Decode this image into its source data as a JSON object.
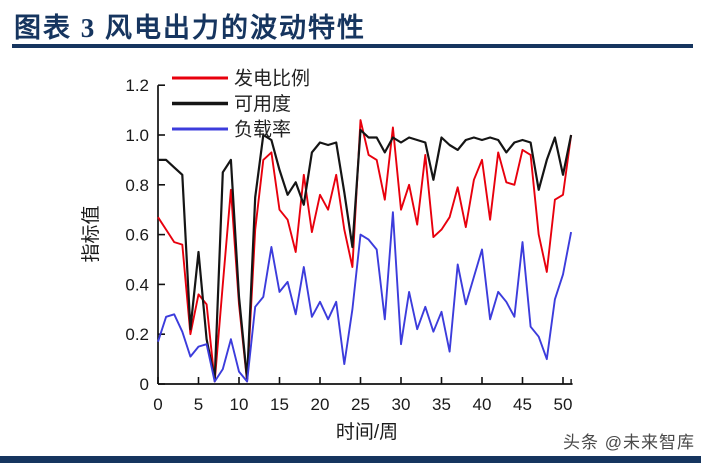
{
  "header": {
    "title": "图表 3  风电出力的波动特性"
  },
  "watermark": "头条 @未来智库",
  "colors": {
    "title": "#16355f",
    "rule": "#16355f",
    "bottom_bar": "#16355f",
    "axis": "#111111",
    "tick_text": "#1a1a1a",
    "watermark_text": "#4a4a4a"
  },
  "chart_data": {
    "type": "line",
    "title": "",
    "xlabel": "时间/周",
    "ylabel": "指标值",
    "xlim": [
      0,
      51
    ],
    "ylim": [
      0,
      1.2
    ],
    "grid": false,
    "legend_position": "top-left-inside",
    "xticks": [
      0,
      5,
      10,
      15,
      20,
      25,
      30,
      35,
      40,
      45,
      50
    ],
    "ytick_labels": [
      "0",
      "0.2",
      "0.4",
      "0.6",
      "0.8",
      "1.0",
      "1.2"
    ],
    "ytick_values": [
      0,
      0.2,
      0.4,
      0.6,
      0.8,
      1.0,
      1.2
    ],
    "x": [
      0,
      1,
      2,
      3,
      4,
      5,
      6,
      7,
      8,
      9,
      10,
      11,
      12,
      13,
      14,
      15,
      16,
      17,
      18,
      19,
      20,
      21,
      22,
      23,
      24,
      25,
      26,
      27,
      28,
      29,
      30,
      31,
      32,
      33,
      34,
      35,
      36,
      37,
      38,
      39,
      40,
      41,
      42,
      43,
      44,
      45,
      46,
      47,
      48,
      49,
      50,
      51
    ],
    "series": [
      {
        "name": "发电比例",
        "color": "#e8000d",
        "line_width": 1.9,
        "values": [
          0.67,
          0.62,
          0.57,
          0.56,
          0.2,
          0.36,
          0.32,
          0.01,
          0.4,
          0.78,
          0.32,
          0.01,
          0.62,
          0.9,
          0.93,
          0.7,
          0.66,
          0.53,
          0.84,
          0.61,
          0.76,
          0.7,
          0.84,
          0.62,
          0.47,
          1.06,
          0.92,
          0.9,
          0.74,
          1.03,
          0.7,
          0.8,
          0.64,
          0.92,
          0.59,
          0.62,
          0.67,
          0.79,
          0.63,
          0.82,
          0.9,
          0.66,
          0.93,
          0.81,
          0.8,
          0.94,
          0.92,
          0.6,
          0.45,
          0.74,
          0.76,
          1.0
        ]
      },
      {
        "name": "可用度",
        "color": "#151515",
        "line_width": 2.2,
        "values": [
          0.9,
          0.9,
          0.87,
          0.84,
          0.22,
          0.53,
          0.18,
          0.02,
          0.85,
          0.9,
          0.35,
          0.02,
          0.75,
          1.0,
          0.98,
          0.86,
          0.76,
          0.81,
          0.72,
          0.93,
          0.97,
          0.96,
          0.97,
          0.77,
          0.55,
          1.02,
          0.99,
          0.99,
          0.93,
          0.99,
          0.97,
          0.99,
          0.98,
          0.97,
          0.82,
          0.99,
          0.96,
          0.94,
          0.98,
          0.99,
          0.98,
          0.99,
          0.98,
          0.93,
          0.97,
          0.98,
          0.97,
          0.78,
          0.9,
          0.99,
          0.84,
          1.0
        ]
      },
      {
        "name": "负载率",
        "color": "#3c3cdc",
        "line_width": 1.9,
        "values": [
          0.17,
          0.27,
          0.28,
          0.21,
          0.11,
          0.15,
          0.16,
          0.01,
          0.06,
          0.18,
          0.05,
          0.01,
          0.31,
          0.35,
          0.55,
          0.37,
          0.41,
          0.28,
          0.47,
          0.27,
          0.33,
          0.26,
          0.33,
          0.08,
          0.3,
          0.6,
          0.58,
          0.54,
          0.26,
          0.69,
          0.16,
          0.37,
          0.22,
          0.31,
          0.21,
          0.29,
          0.13,
          0.48,
          0.32,
          0.43,
          0.54,
          0.26,
          0.37,
          0.33,
          0.27,
          0.57,
          0.23,
          0.19,
          0.1,
          0.34,
          0.44,
          0.61
        ]
      }
    ]
  }
}
